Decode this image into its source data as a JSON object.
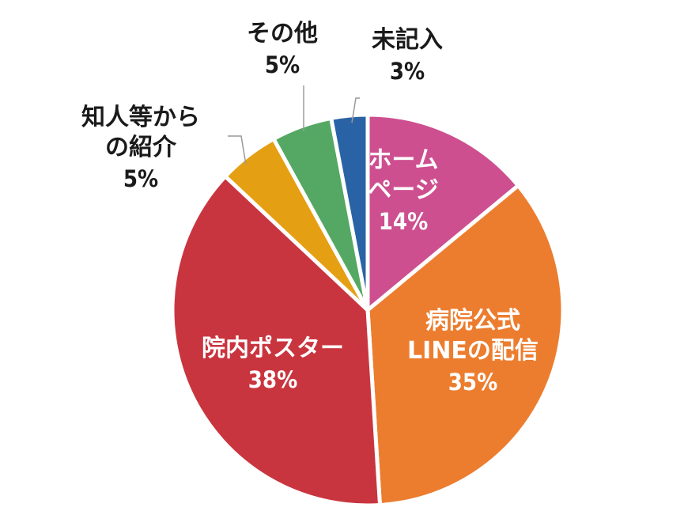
{
  "chart_data": {
    "type": "pie",
    "title": "",
    "start_angle_deg": 0,
    "direction": "clockwise",
    "slices": [
      {
        "label_lines": [
          "ホーム",
          "ページ"
        ],
        "percent_label": "14%",
        "value": 14,
        "color": "#cd4f8f"
      },
      {
        "label_lines": [
          "病院公式",
          "LINEの配信"
        ],
        "percent_label": "35%",
        "value": 35,
        "color": "#ec7d2f"
      },
      {
        "label_lines": [
          "院内ポスター"
        ],
        "percent_label": "38%",
        "value": 38,
        "color": "#c9353f"
      },
      {
        "label_lines": [
          "知人等から",
          "の紹介"
        ],
        "percent_label": "5%",
        "value": 5,
        "color": "#e59f12"
      },
      {
        "label_lines": [
          "その他"
        ],
        "percent_label": "5%",
        "value": 5,
        "color": "#55a863"
      },
      {
        "label_lines": [
          "未記入"
        ],
        "percent_label": "3%",
        "value": 3,
        "color": "#2a63a5"
      }
    ],
    "legend": "none"
  }
}
